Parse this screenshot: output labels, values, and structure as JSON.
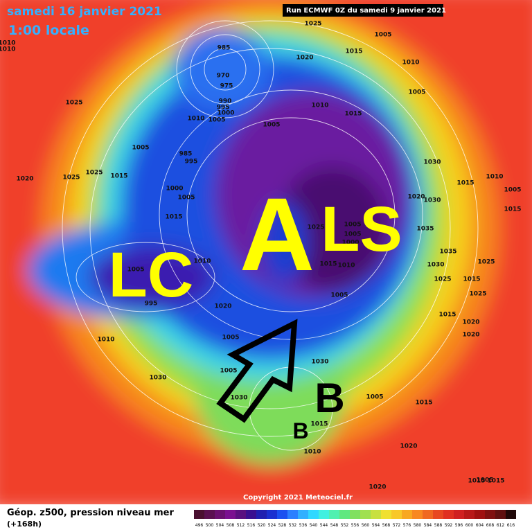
{
  "header": {
    "date": "samedi 16 janvier 2021",
    "time": "1:00 locale",
    "run": "Run ECMWF 0Z du samedi 9 janvier 2021"
  },
  "footer": {
    "copyright": "Copyright 2021 Meteociel.fr",
    "legend_title": "Géop. z500, pression niveau mer",
    "lead": "(+168h)",
    "scale": [
      496,
      500,
      504,
      508,
      512,
      516,
      520,
      524,
      528,
      532,
      536,
      540,
      544,
      548,
      552,
      556,
      560,
      564,
      568,
      572,
      576,
      580,
      584,
      588,
      592,
      596,
      600,
      604,
      608,
      612,
      616
    ]
  },
  "annotations": {
    "lc": "LC",
    "a": "A",
    "ls": "LS",
    "b_big": "B",
    "b_small": "B"
  },
  "pressure_labels": [
    "1025",
    "1005",
    "1015",
    "1010",
    "1020",
    "985",
    "970",
    "975",
    "990",
    "995",
    "1000",
    "1005",
    "1010",
    "1010",
    "1015",
    "1005",
    "1005",
    "1025",
    "1005",
    "985",
    "995",
    "1025",
    "1015",
    "1020",
    "1025",
    "1000",
    "1005",
    "1015",
    "1030",
    "1020",
    "1030",
    "1025",
    "1005",
    "1005",
    "1000",
    "1035",
    "1035",
    "1015",
    "1010",
    "1030",
    "1025",
    "1025",
    "1015",
    "1010",
    "1005",
    "1015",
    "1010",
    "1005",
    "995",
    "1020",
    "1005",
    "1015",
    "1025",
    "1015",
    "1020",
    "1020",
    "1010",
    "1005",
    "1030",
    "1005",
    "1030",
    "1005",
    "1015",
    "1030",
    "1015",
    "1010",
    "1020",
    "1020",
    "1015",
    "1015",
    "1005",
    "1010",
    "1010"
  ]
}
